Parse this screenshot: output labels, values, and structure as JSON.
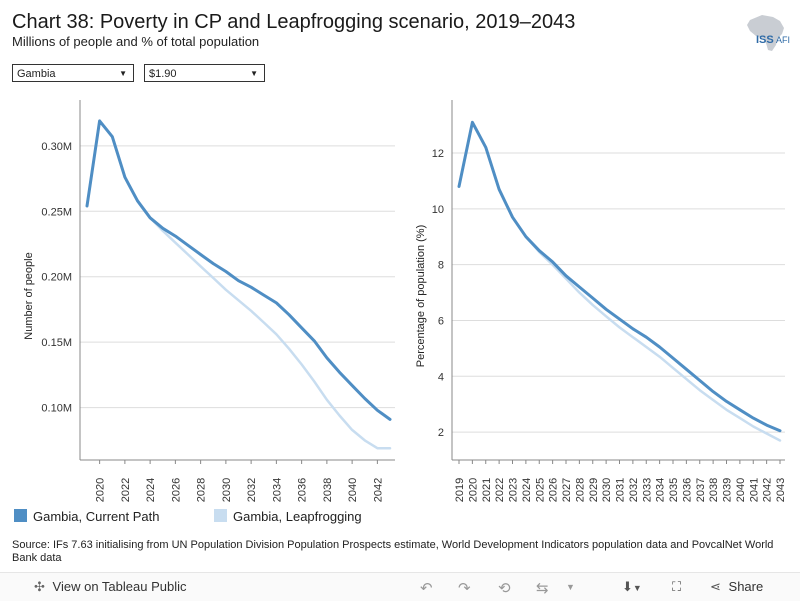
{
  "header": {
    "title": "Chart 38: Poverty in CP and Leapfrogging scenario, 2019–2043",
    "subtitle": "Millions of people and % of total population",
    "logo_text_a": "ISS",
    "logo_text_b": "AFI"
  },
  "filters": {
    "country": "Gambia",
    "poverty_line": "$1.90"
  },
  "colors": {
    "current_path": "#4f8ec4",
    "leapfrogging": "#c8ddf0",
    "grid": "#dddddd",
    "axis": "#888888"
  },
  "legend": {
    "current_path": "Gambia, Current Path",
    "leapfrogging": "Gambia, Leapfrogging"
  },
  "source": "Source: IFs 7.63 initialising from UN Population Division Population Prospects estimate, World Development Indicators population data and PovcalNet World Bank data",
  "footer": {
    "view_label": "View on Tableau Public",
    "share_label": "Share"
  },
  "chart_data": [
    {
      "type": "line",
      "ylabel": "Number of people",
      "xlabel": "",
      "xlim": [
        2019,
        2043
      ],
      "ylim": [
        0.06,
        0.335
      ],
      "yticks": [
        0.1,
        0.15,
        0.2,
        0.25,
        0.3
      ],
      "ytick_labels": [
        "0.10M",
        "0.15M",
        "0.20M",
        "0.25M",
        "0.30M"
      ],
      "xticks": [
        2020,
        2022,
        2024,
        2026,
        2028,
        2030,
        2032,
        2034,
        2036,
        2038,
        2040,
        2042
      ],
      "x": [
        2019,
        2020,
        2021,
        2022,
        2023,
        2024,
        2025,
        2026,
        2027,
        2028,
        2029,
        2030,
        2031,
        2032,
        2033,
        2034,
        2035,
        2036,
        2037,
        2038,
        2039,
        2040,
        2041,
        2042,
        2043
      ],
      "series": [
        {
          "name": "Gambia, Current Path",
          "values": [
            0.254,
            0.319,
            0.307,
            0.276,
            0.258,
            0.245,
            0.237,
            0.231,
            0.224,
            0.217,
            0.21,
            0.204,
            0.197,
            0.192,
            0.186,
            0.18,
            0.171,
            0.161,
            0.151,
            0.138,
            0.127,
            0.117,
            0.107,
            0.098,
            0.091
          ]
        },
        {
          "name": "Gambia, Leapfrogging",
          "values": [
            0.254,
            0.319,
            0.307,
            0.276,
            0.258,
            0.245,
            0.235,
            0.226,
            0.217,
            0.208,
            0.199,
            0.19,
            0.182,
            0.174,
            0.165,
            0.156,
            0.145,
            0.133,
            0.12,
            0.106,
            0.094,
            0.083,
            0.075,
            0.069,
            0.069
          ]
        }
      ]
    },
    {
      "type": "line",
      "ylabel": "Percentage of population (%)",
      "xlabel": "",
      "xlim": [
        2019,
        2043
      ],
      "ylim": [
        1,
        13.9
      ],
      "yticks": [
        2,
        4,
        6,
        8,
        10,
        12
      ],
      "ytick_labels": [
        "2",
        "4",
        "6",
        "8",
        "10",
        "12"
      ],
      "xticks": [
        2019,
        2020,
        2021,
        2022,
        2023,
        2024,
        2025,
        2026,
        2027,
        2028,
        2029,
        2030,
        2031,
        2032,
        2033,
        2034,
        2035,
        2036,
        2037,
        2038,
        2039,
        2040,
        2041,
        2042,
        2043
      ],
      "x": [
        2019,
        2020,
        2021,
        2022,
        2023,
        2024,
        2025,
        2026,
        2027,
        2028,
        2029,
        2030,
        2031,
        2032,
        2033,
        2034,
        2035,
        2036,
        2037,
        2038,
        2039,
        2040,
        2041,
        2042,
        2043
      ],
      "series": [
        {
          "name": "Gambia, Current Path",
          "values": [
            10.8,
            13.1,
            12.2,
            10.7,
            9.7,
            9.0,
            8.5,
            8.1,
            7.6,
            7.2,
            6.8,
            6.4,
            6.05,
            5.7,
            5.4,
            5.05,
            4.65,
            4.25,
            3.85,
            3.45,
            3.1,
            2.8,
            2.5,
            2.25,
            2.05
          ]
        },
        {
          "name": "Gambia, Leapfrogging",
          "values": [
            10.8,
            13.1,
            12.2,
            10.7,
            9.7,
            9.0,
            8.45,
            8.0,
            7.5,
            7.0,
            6.55,
            6.15,
            5.75,
            5.4,
            5.05,
            4.7,
            4.3,
            3.9,
            3.5,
            3.15,
            2.8,
            2.5,
            2.2,
            1.95,
            1.7
          ]
        }
      ]
    }
  ]
}
